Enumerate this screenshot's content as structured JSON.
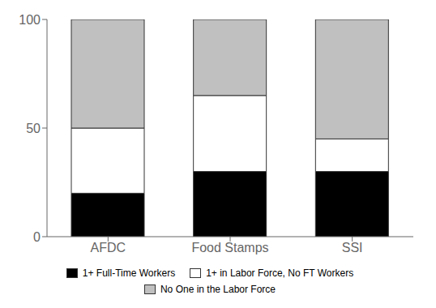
{
  "chart_data": {
    "type": "bar",
    "stacked": true,
    "categories": [
      "AFDC",
      "Food Stamps",
      "SSI"
    ],
    "series": [
      {
        "name": "1+ Full-Time Workers",
        "color": "#000000",
        "values": [
          20,
          30,
          30
        ]
      },
      {
        "name": "1+ in Labor Force, No FT Workers",
        "color": "#ffffff",
        "values": [
          30,
          35,
          15
        ]
      },
      {
        "name": "No One in the Labor Force",
        "color": "#c0c0c0",
        "values": [
          50,
          35,
          55
        ]
      }
    ],
    "ylim": [
      0,
      100
    ],
    "yticks": [
      0,
      50,
      100
    ],
    "grid": false,
    "legend": "bottom"
  }
}
